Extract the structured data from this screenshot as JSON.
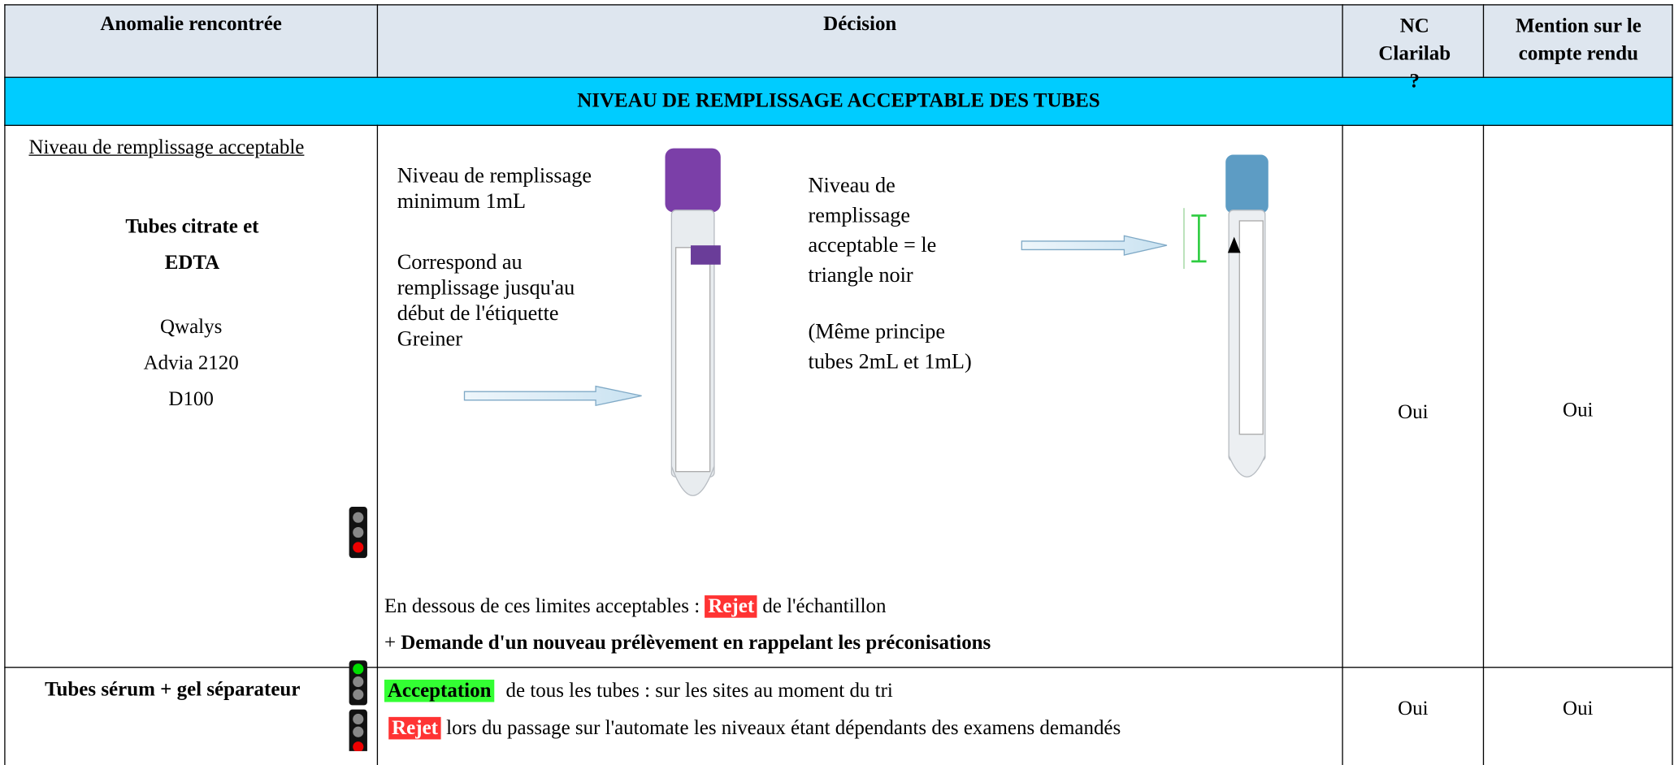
{
  "table": {
    "headers": [
      "Anomalie rencontrée",
      "Décision",
      "NC Clarilab ?",
      "Mention sur le compte rendu"
    ],
    "section": "NIVEAU DE REMPLISSAGE ACCEPTABLE DES TUBES",
    "rows": [
      {
        "anomaly": {
          "title": "Niveau de remplissage acceptable",
          "tubes": "Tubes citrate et EDTA",
          "instruments": [
            "Qwalys",
            "Advia 2120",
            "D100"
          ]
        },
        "decision": {
          "left_note": [
            "Niveau de remplissage minimum 1mL",
            "Correspond au remplissage jusqu'au début de l'étiquette Greiner"
          ],
          "right_note": [
            "Niveau de remplissage acceptable = le triangle noir",
            "(Même principe tubes 2mL et 1mL)"
          ],
          "line1": {
            "before": "En dessous de ces limites acceptables :",
            "badge": "Rejet",
            "after": "de l'échantillon"
          },
          "line2": {
            "plus": "+",
            "bold": "Demande d'un nouveau prélèvement en rappelant les préconisations"
          }
        },
        "nc": "Oui",
        "mention": "Oui"
      },
      {
        "anomaly": {
          "title": "Tubes sérum + gel séparateur"
        },
        "decision": {
          "line1": {
            "badge": "Acceptation",
            "after": "de tous les tubes : sur les sites au moment du tri"
          },
          "line2": {
            "badge": "Rejet",
            "after": "lors du passage sur l'automate les niveaux étant dépendants des examens demandés"
          }
        },
        "nc": "Oui",
        "mention": "Oui"
      }
    ]
  }
}
